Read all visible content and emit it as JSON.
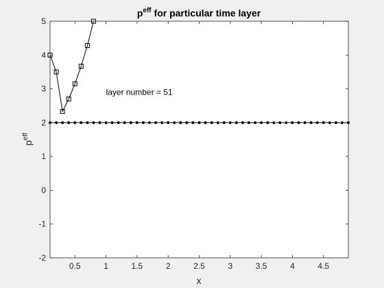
{
  "chart_data": {
    "type": "line",
    "title": "p",
    "title_superscript": "eff",
    "title_rest": " for particular time layer",
    "xlabel": "x",
    "ylabel": "p",
    "ylabel_superscript": "eff",
    "xlim": [
      0.1,
      4.9
    ],
    "ylim": [
      -2,
      5
    ],
    "xticks": [
      0.5,
      1,
      1.5,
      2,
      2.5,
      3,
      3.5,
      4,
      4.5
    ],
    "xtick_labels": [
      "0.5",
      "1",
      "1.5",
      "2",
      "2.5",
      "3",
      "3.5",
      "4",
      "4.5"
    ],
    "yticks": [
      -2,
      -1,
      0,
      1,
      2,
      3,
      4,
      5
    ],
    "ytick_labels": [
      "-2",
      "-1",
      "0",
      "1",
      "2",
      "3",
      "4",
      "5"
    ],
    "grid": false,
    "annotation": {
      "text": "layer number = 51",
      "x": 1.0,
      "y": 2.9
    },
    "series": [
      {
        "marker": "square",
        "color": "#000000",
        "x": [
          0.1,
          0.2,
          0.3,
          0.4,
          0.5,
          0.6,
          0.7,
          0.8
        ],
        "y": [
          4.0,
          3.5,
          2.33,
          2.7,
          3.15,
          3.67,
          4.28,
          5.0
        ]
      },
      {
        "marker": "dot",
        "color": "#000000",
        "x": [
          0.1,
          0.2,
          0.3,
          0.4,
          0.5,
          0.6,
          0.7,
          0.8,
          0.9,
          1.0,
          1.1,
          1.2,
          1.3,
          1.4,
          1.5,
          1.6,
          1.7,
          1.8,
          1.9,
          2.0,
          2.1,
          2.2,
          2.3,
          2.4,
          2.5,
          2.6,
          2.7,
          2.8,
          2.9,
          3.0,
          3.1,
          3.2,
          3.3,
          3.4,
          3.5,
          3.6,
          3.7,
          3.8,
          3.9,
          4.0,
          4.1,
          4.2,
          4.3,
          4.4,
          4.5,
          4.6,
          4.7,
          4.8,
          4.9
        ],
        "y": [
          2,
          2,
          2,
          2,
          2,
          2,
          2,
          2,
          2,
          2,
          2,
          2,
          2,
          2,
          2,
          2,
          2,
          2,
          2,
          2,
          2,
          2,
          2,
          2,
          2,
          2,
          2,
          2,
          2,
          2,
          2,
          2,
          2,
          2,
          2,
          2,
          2,
          2,
          2,
          2,
          2,
          2,
          2,
          2,
          2,
          2,
          2,
          2,
          2
        ]
      }
    ]
  }
}
